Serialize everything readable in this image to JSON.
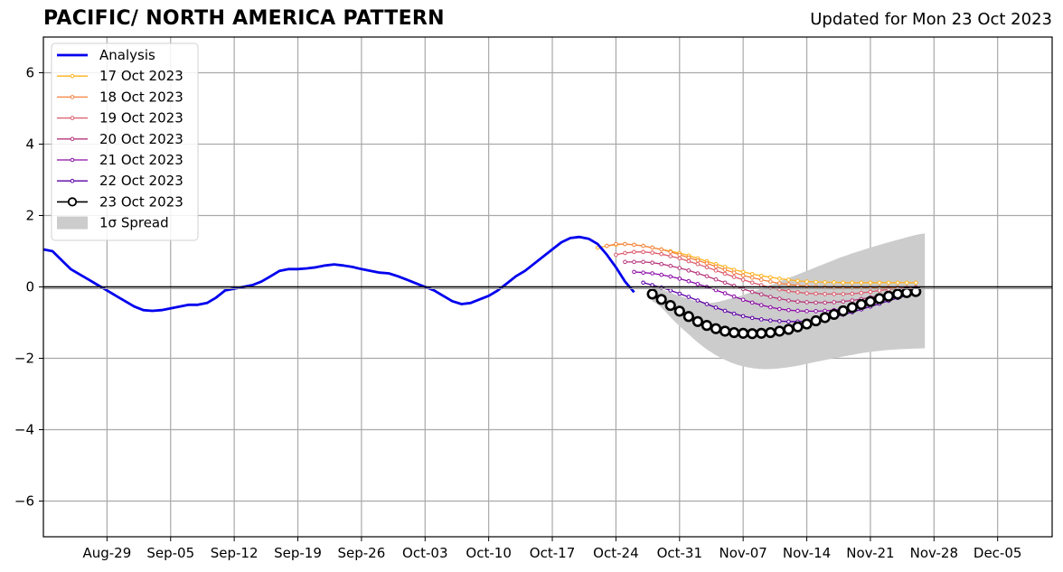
{
  "chart_data": {
    "type": "line",
    "title": "PACIFIC/ NORTH AMERICA PATTERN",
    "subtitle": "Updated for Mon 23 Oct 2023",
    "x_range": [
      "2023-08-22",
      "2023-12-11"
    ],
    "ylim": [
      -7,
      7
    ],
    "yticks": [
      -6,
      -4,
      -2,
      0,
      2,
      4,
      6
    ],
    "ytick_labels": [
      "−6",
      "−4",
      "−2",
      "0",
      "2",
      "4",
      "6"
    ],
    "xticks": [
      "2023-08-29",
      "2023-09-05",
      "2023-09-12",
      "2023-09-19",
      "2023-09-26",
      "2023-10-03",
      "2023-10-10",
      "2023-10-17",
      "2023-10-24",
      "2023-10-31",
      "2023-11-07",
      "2023-11-14",
      "2023-11-21",
      "2023-11-28",
      "2023-12-05"
    ],
    "xtick_labels": [
      "Aug-29",
      "Sep-05",
      "Sep-12",
      "Sep-19",
      "Sep-26",
      "Oct-03",
      "Oct-10",
      "Oct-17",
      "Oct-24",
      "Oct-31",
      "Nov-07",
      "Nov-14",
      "Nov-21",
      "Nov-28",
      "Dec-05"
    ],
    "grid": true,
    "zero_line": true,
    "legend_position": "top-left",
    "analysis": {
      "name": "Analysis",
      "color": "#0000ee",
      "points": [
        [
          "2023-08-22",
          1.05
        ],
        [
          "2023-08-23",
          1.0
        ],
        [
          "2023-08-24",
          0.75
        ],
        [
          "2023-08-25",
          0.5
        ],
        [
          "2023-08-26",
          0.35
        ],
        [
          "2023-08-27",
          0.2
        ],
        [
          "2023-08-28",
          0.05
        ],
        [
          "2023-08-29",
          -0.1
        ],
        [
          "2023-08-30",
          -0.25
        ],
        [
          "2023-08-31",
          -0.4
        ],
        [
          "2023-09-01",
          -0.55
        ],
        [
          "2023-09-02",
          -0.65
        ],
        [
          "2023-09-03",
          -0.67
        ],
        [
          "2023-09-04",
          -0.65
        ],
        [
          "2023-09-05",
          -0.6
        ],
        [
          "2023-09-06",
          -0.55
        ],
        [
          "2023-09-07",
          -0.5
        ],
        [
          "2023-09-08",
          -0.5
        ],
        [
          "2023-09-09",
          -0.45
        ],
        [
          "2023-09-10",
          -0.3
        ],
        [
          "2023-09-11",
          -0.1
        ],
        [
          "2023-09-12",
          -0.05
        ],
        [
          "2023-09-13",
          0.0
        ],
        [
          "2023-09-14",
          0.05
        ],
        [
          "2023-09-15",
          0.15
        ],
        [
          "2023-09-16",
          0.3
        ],
        [
          "2023-09-17",
          0.45
        ],
        [
          "2023-09-18",
          0.5
        ],
        [
          "2023-09-19",
          0.5
        ],
        [
          "2023-09-20",
          0.52
        ],
        [
          "2023-09-21",
          0.55
        ],
        [
          "2023-09-22",
          0.6
        ],
        [
          "2023-09-23",
          0.63
        ],
        [
          "2023-09-24",
          0.6
        ],
        [
          "2023-09-25",
          0.56
        ],
        [
          "2023-09-26",
          0.5
        ],
        [
          "2023-09-27",
          0.45
        ],
        [
          "2023-09-28",
          0.4
        ],
        [
          "2023-09-29",
          0.38
        ],
        [
          "2023-09-30",
          0.3
        ],
        [
          "2023-10-01",
          0.2
        ],
        [
          "2023-10-02",
          0.1
        ],
        [
          "2023-10-03",
          0.0
        ],
        [
          "2023-10-04",
          -0.1
        ],
        [
          "2023-10-05",
          -0.25
        ],
        [
          "2023-10-06",
          -0.4
        ],
        [
          "2023-10-07",
          -0.48
        ],
        [
          "2023-10-08",
          -0.45
        ],
        [
          "2023-10-09",
          -0.35
        ],
        [
          "2023-10-10",
          -0.25
        ],
        [
          "2023-10-11",
          -0.1
        ],
        [
          "2023-10-12",
          0.1
        ],
        [
          "2023-10-13",
          0.3
        ],
        [
          "2023-10-14",
          0.45
        ],
        [
          "2023-10-15",
          0.65
        ],
        [
          "2023-10-16",
          0.85
        ],
        [
          "2023-10-17",
          1.05
        ],
        [
          "2023-10-18",
          1.25
        ],
        [
          "2023-10-19",
          1.37
        ],
        [
          "2023-10-20",
          1.4
        ],
        [
          "2023-10-21",
          1.35
        ],
        [
          "2023-10-22",
          1.2
        ],
        [
          "2023-10-23",
          0.9
        ],
        [
          "2023-10-24",
          0.55
        ],
        [
          "2023-10-25",
          0.15
        ],
        [
          "2023-10-26",
          -0.15
        ]
      ]
    },
    "forecasts": [
      {
        "name": "17 Oct 2023",
        "color": "#ffb21c",
        "start": "2023-10-22",
        "values": [
          1.1,
          1.15,
          1.18,
          1.2,
          1.18,
          1.15,
          1.1,
          1.05,
          1.0,
          0.95,
          0.88,
          0.8,
          0.72,
          0.64,
          0.56,
          0.48,
          0.42,
          0.36,
          0.31,
          0.27,
          0.23,
          0.2,
          0.17,
          0.15,
          0.14,
          0.13,
          0.13,
          0.12,
          0.12,
          0.12,
          0.12,
          0.12,
          0.12,
          0.12,
          0.12,
          0.12
        ]
      },
      {
        "name": "18 Oct 2023",
        "color": "#f3833f",
        "start": "2023-10-23",
        "values": [
          1.15,
          1.2,
          1.2,
          1.18,
          1.15,
          1.1,
          1.05,
          0.98,
          0.9,
          0.82,
          0.74,
          0.66,
          0.57,
          0.48,
          0.4,
          0.32,
          0.26,
          0.2,
          0.15,
          0.1,
          0.07,
          0.04,
          0.02,
          0.0,
          -0.01,
          -0.02,
          -0.02,
          -0.02,
          -0.02,
          -0.02,
          -0.02,
          -0.02,
          -0.02,
          -0.02,
          -0.02
        ]
      },
      {
        "name": "19 Oct 2023",
        "color": "#db5a6b",
        "start": "2023-10-24",
        "values": [
          0.9,
          0.95,
          0.98,
          0.98,
          0.96,
          0.92,
          0.86,
          0.8,
          0.72,
          0.64,
          0.55,
          0.46,
          0.37,
          0.28,
          0.2,
          0.12,
          0.05,
          -0.02,
          -0.07,
          -0.12,
          -0.15,
          -0.18,
          -0.19,
          -0.2,
          -0.2,
          -0.2,
          -0.19,
          -0.17,
          -0.14,
          -0.1,
          -0.07,
          -0.04,
          -0.02,
          -0.01
        ]
      },
      {
        "name": "20 Oct 2023",
        "color": "#b5367a",
        "start": "2023-10-25",
        "values": [
          0.7,
          0.7,
          0.7,
          0.68,
          0.64,
          0.59,
          0.53,
          0.46,
          0.38,
          0.3,
          0.21,
          0.12,
          0.03,
          -0.06,
          -0.14,
          -0.21,
          -0.28,
          -0.33,
          -0.38,
          -0.41,
          -0.43,
          -0.44,
          -0.44,
          -0.43,
          -0.41,
          -0.38,
          -0.34,
          -0.29,
          -0.24,
          -0.18,
          -0.13,
          -0.08,
          -0.04
        ]
      },
      {
        "name": "21 Oct 2023",
        "color": "#8c0ca8",
        "start": "2023-10-26",
        "values": [
          0.42,
          0.4,
          0.38,
          0.34,
          0.29,
          0.23,
          0.16,
          0.08,
          0.0,
          -0.09,
          -0.18,
          -0.27,
          -0.36,
          -0.44,
          -0.51,
          -0.57,
          -0.62,
          -0.65,
          -0.67,
          -0.68,
          -0.68,
          -0.67,
          -0.65,
          -0.62,
          -0.57,
          -0.51,
          -0.45,
          -0.38,
          -0.31,
          -0.24,
          -0.17,
          -0.1
        ]
      },
      {
        "name": "22 Oct 2023",
        "color": "#5c01a6",
        "start": "2023-10-27",
        "values": [
          0.12,
          0.05,
          -0.02,
          -0.1,
          -0.19,
          -0.28,
          -0.38,
          -0.48,
          -0.58,
          -0.67,
          -0.75,
          -0.82,
          -0.87,
          -0.91,
          -0.94,
          -0.96,
          -0.97,
          -0.97,
          -0.96,
          -0.93,
          -0.89,
          -0.84,
          -0.78,
          -0.71,
          -0.63,
          -0.55,
          -0.47,
          -0.39,
          -0.31,
          -0.24,
          -0.17
        ]
      },
      {
        "name": "23 Oct 2023",
        "color": "#000000",
        "start": "2023-10-28",
        "values": [
          -0.2,
          -0.35,
          -0.52,
          -0.68,
          -0.83,
          -0.97,
          -1.08,
          -1.17,
          -1.24,
          -1.28,
          -1.3,
          -1.31,
          -1.3,
          -1.28,
          -1.24,
          -1.19,
          -1.12,
          -1.04,
          -0.95,
          -0.86,
          -0.77,
          -0.67,
          -0.58,
          -0.49,
          -0.41,
          -0.33,
          -0.26,
          -0.2,
          -0.16,
          -0.13
        ]
      }
    ],
    "spread": {
      "name": "1σ Spread",
      "color": "#cccccc",
      "points": [
        [
          "2023-10-28",
          0.0,
          -0.4
        ],
        [
          "2023-10-31",
          -0.25,
          -1.1
        ],
        [
          "2023-11-03",
          -0.45,
          -1.75
        ],
        [
          "2023-11-06",
          -0.3,
          -2.15
        ],
        [
          "2023-11-09",
          -0.05,
          -2.3
        ],
        [
          "2023-11-12",
          0.25,
          -2.25
        ],
        [
          "2023-11-15",
          0.55,
          -2.1
        ],
        [
          "2023-11-18",
          0.85,
          -1.95
        ],
        [
          "2023-11-21",
          1.1,
          -1.82
        ],
        [
          "2023-11-24",
          1.32,
          -1.75
        ],
        [
          "2023-11-27",
          1.5,
          -1.72
        ]
      ]
    },
    "legend": [
      "Analysis",
      "17 Oct 2023",
      "18 Oct 2023",
      "19 Oct 2023",
      "20 Oct 2023",
      "21 Oct 2023",
      "22 Oct 2023",
      "23 Oct 2023",
      "1σ Spread"
    ]
  }
}
